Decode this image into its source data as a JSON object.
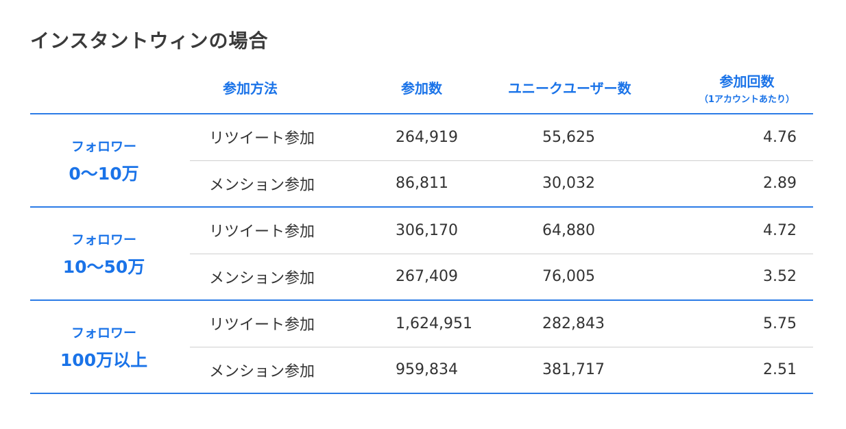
{
  "title": "インスタントウィンの場合",
  "table": {
    "headers": {
      "method": "参加方法",
      "count": "参加数",
      "users": "ユニークユーザー数",
      "avg": "参加回数",
      "avg_sub": "（1アカウントあたり）"
    },
    "groups": [
      {
        "label": "フォロワー",
        "range": "0〜10万",
        "rows": [
          {
            "method": "リツイート参加",
            "count": "264,919",
            "users": "55,625",
            "avg": "4.76"
          },
          {
            "method": "メンション参加",
            "count": "86,811",
            "users": "30,032",
            "avg": "2.89"
          }
        ]
      },
      {
        "label": "フォロワー",
        "range": "10〜50万",
        "rows": [
          {
            "method": "リツイート参加",
            "count": "306,170",
            "users": "64,880",
            "avg": "4.72"
          },
          {
            "method": "メンション参加",
            "count": "267,409",
            "users": "76,005",
            "avg": "3.52"
          }
        ]
      },
      {
        "label": "フォロワー",
        "range": "100万以上",
        "rows": [
          {
            "method": "リツイート参加",
            "count": "1,624,951",
            "users": "282,843",
            "avg": "5.75"
          },
          {
            "method": "メンション参加",
            "count": "959,834",
            "users": "381,717",
            "avg": "2.51"
          }
        ]
      }
    ]
  }
}
